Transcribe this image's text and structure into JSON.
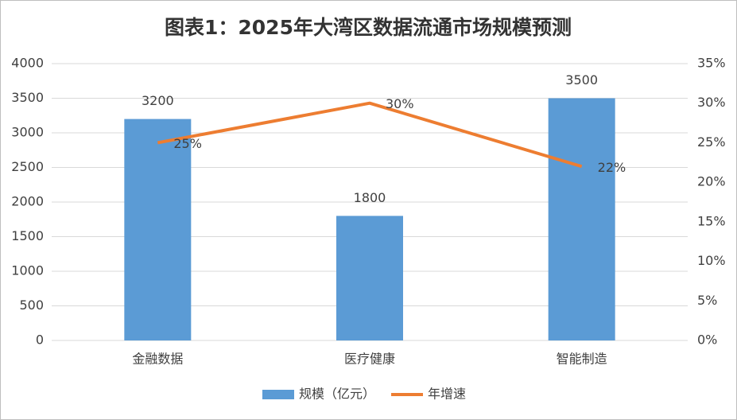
{
  "chart_data": {
    "type": "bar",
    "title": "图表1：2025年大湾区数据流通市场规模预测",
    "categories": [
      "金融数据",
      "医疗健康",
      "智能制造"
    ],
    "series": [
      {
        "name": "规模（亿元）",
        "type": "bar",
        "color": "#5b9bd5",
        "values": [
          3200,
          1800,
          3500
        ]
      },
      {
        "name": "年增速",
        "type": "line",
        "axis": "y2",
        "color": "#ed7d31",
        "values": [
          25,
          30,
          22
        ],
        "value_labels": [
          "25%",
          "30%",
          "22%"
        ]
      }
    ],
    "ylim": [
      0,
      4000
    ],
    "yticks": [
      0,
      500,
      1000,
      1500,
      2000,
      2500,
      3000,
      3500,
      4000
    ],
    "y2lim": [
      0,
      35
    ],
    "y2ticks": [
      {
        "value": 0,
        "label": "0%"
      },
      {
        "value": 5,
        "label": "5%"
      },
      {
        "value": 10,
        "label": "10%"
      },
      {
        "value": 15,
        "label": "15%"
      },
      {
        "value": 20,
        "label": "20%"
      },
      {
        "value": 25,
        "label": "25%"
      },
      {
        "value": 30,
        "label": "30%"
      },
      {
        "value": 35,
        "label": "35%"
      }
    ],
    "grid": true,
    "legend": "bottom"
  }
}
